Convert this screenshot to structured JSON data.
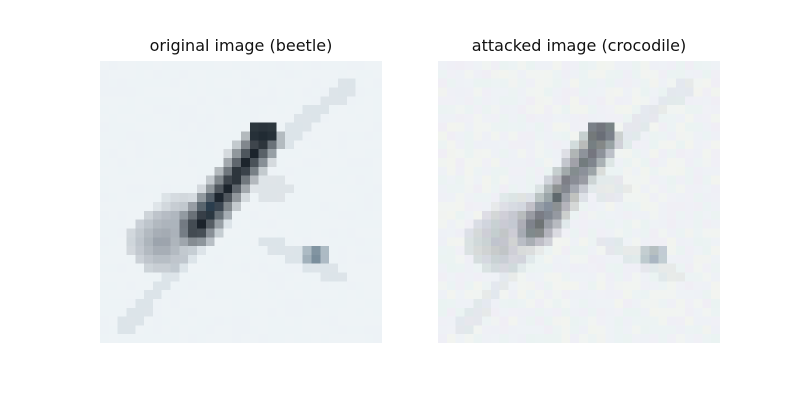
{
  "panels": [
    {
      "title": "original image (beetle)",
      "noise": false
    },
    {
      "title": "attacked image (crocodile)",
      "noise": true
    }
  ],
  "image": {
    "grid_size": 32,
    "background_color": "#eef3f6",
    "body_color": "#141c24",
    "shadow_color": "#8a929c",
    "noise_colors": [
      "#f1e6f2",
      "#e4f1ea",
      "#ecebf7",
      "#f5f2e4"
    ]
  }
}
